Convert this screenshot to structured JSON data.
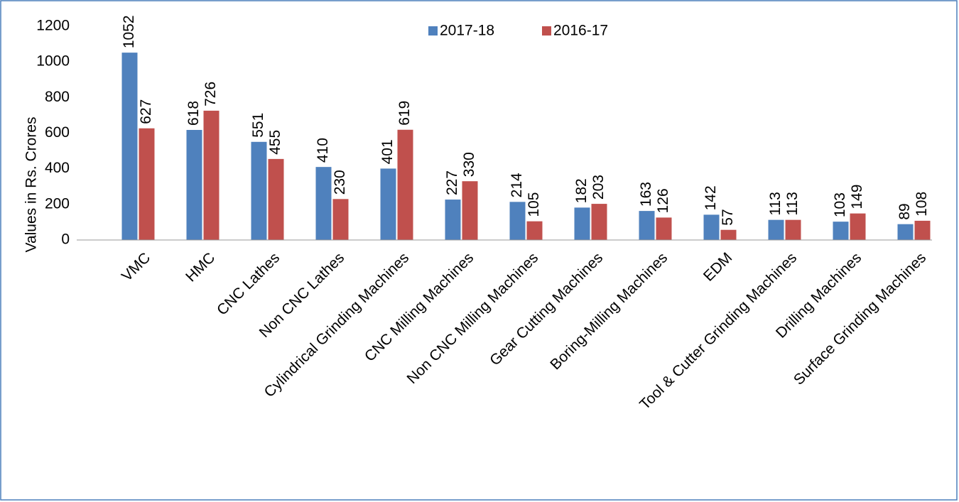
{
  "chart_data": {
    "type": "bar",
    "y_axis_label": "Values in Rs. Crores",
    "categories": [
      "VMC",
      "HMC",
      "CNC Lathes",
      "Non CNC Lathes",
      "Cylindrical Grinding Machines",
      "CNC Milling Machines",
      "Non CNC Milling Machines",
      "Gear Cutting Machines",
      "Boring-Milling Machines",
      "EDM",
      "Tool & Cutter Grinding Machines",
      "Drilling Machines",
      "Surface Grinding Machines"
    ],
    "series": [
      {
        "name": "2017-18",
        "color": "#4f81bd",
        "values": [
          1052,
          618,
          551,
          410,
          401,
          227,
          214,
          182,
          163,
          142,
          113,
          103,
          89
        ]
      },
      {
        "name": "2016-17",
        "color": "#c0504d",
        "values": [
          627,
          726,
          455,
          230,
          619,
          330,
          105,
          203,
          126,
          57,
          113,
          149,
          108
        ]
      }
    ],
    "ylim": [
      0,
      1200
    ],
    "yticks": [
      0,
      200,
      400,
      600,
      800,
      1000,
      1200
    ],
    "grid": false,
    "legend": "top"
  }
}
